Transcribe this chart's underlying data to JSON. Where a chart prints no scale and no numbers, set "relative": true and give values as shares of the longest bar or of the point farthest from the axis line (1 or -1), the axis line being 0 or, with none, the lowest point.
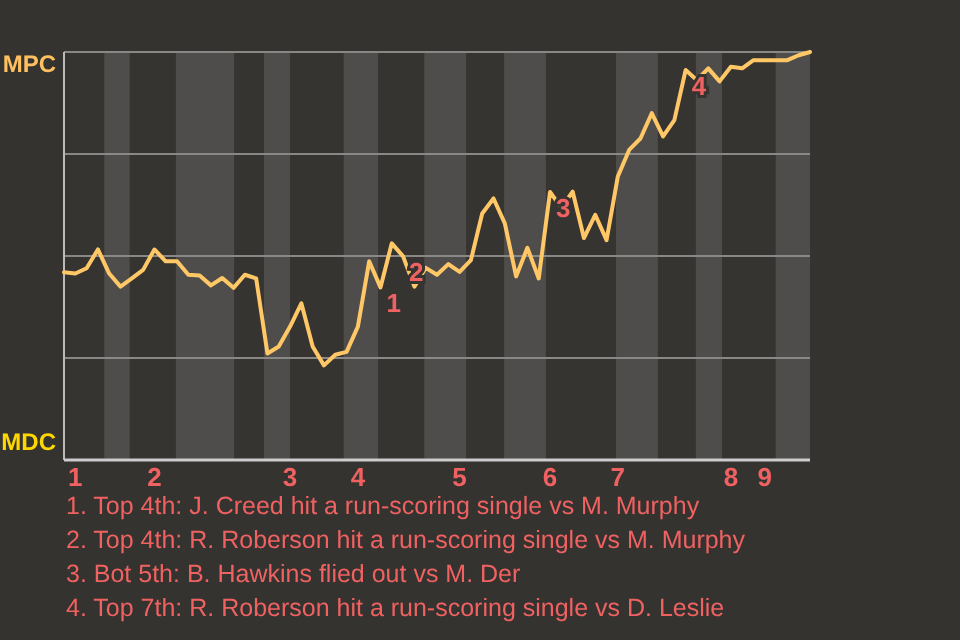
{
  "chart_data": {
    "type": "line",
    "relative": true,
    "categories": [
      null,
      "1",
      null,
      null,
      null,
      null,
      null,
      null,
      "2",
      null,
      null,
      null,
      null,
      null,
      null,
      null,
      null,
      null,
      null,
      null,
      "3",
      null,
      null,
      null,
      null,
      null,
      "4",
      null,
      null,
      null,
      null,
      null,
      null,
      null,
      null,
      "5",
      null,
      null,
      null,
      null,
      null,
      null,
      null,
      "6",
      null,
      null,
      null,
      null,
      null,
      "7",
      null,
      null,
      null,
      null,
      null,
      null,
      null,
      null,
      null,
      "8",
      null,
      null,
      "9",
      null,
      null,
      null,
      null
    ],
    "series": [
      {
        "color": "#ffc766",
        "values": [
          0.46,
          0.457,
          0.47,
          0.516,
          0.457,
          0.425,
          0.445,
          0.466,
          0.516,
          0.487,
          0.487,
          0.454,
          0.452,
          0.428,
          0.446,
          0.422,
          0.454,
          0.445,
          0.261,
          0.278,
          0.327,
          0.384,
          0.278,
          0.232,
          0.258,
          0.265,
          0.327,
          0.487,
          0.423,
          0.531,
          0.499,
          0.425,
          0.471,
          0.454,
          0.48,
          0.461,
          0.49,
          0.604,
          0.641,
          0.58,
          0.45,
          0.52,
          0.445,
          0.657,
          0.618,
          0.658,
          0.544,
          0.601,
          0.539,
          0.695,
          0.76,
          0.788,
          0.85,
          0.793,
          0.833,
          0.956,
          0.931,
          0.96,
          0.928,
          0.964,
          0.96,
          0.98,
          0.98,
          0.98,
          0.98,
          0.992,
          1
        ]
      }
    ],
    "grid": "y",
    "annotations": [
      "MPC",
      "MDC",
      "1",
      "2",
      "3",
      "4",
      "1. Top 4th: J. Creed hit a run-scoring single vs M. Murphy",
      "2. Top 4th: R. Roberson hit a run-scoring single vs M. Murphy",
      "3. Bot 5th: B. Hawkins flied out vs M. Der",
      "4. Top 7th: R. Roberson hit a run-scoring single vs D. Leslie"
    ]
  }
}
